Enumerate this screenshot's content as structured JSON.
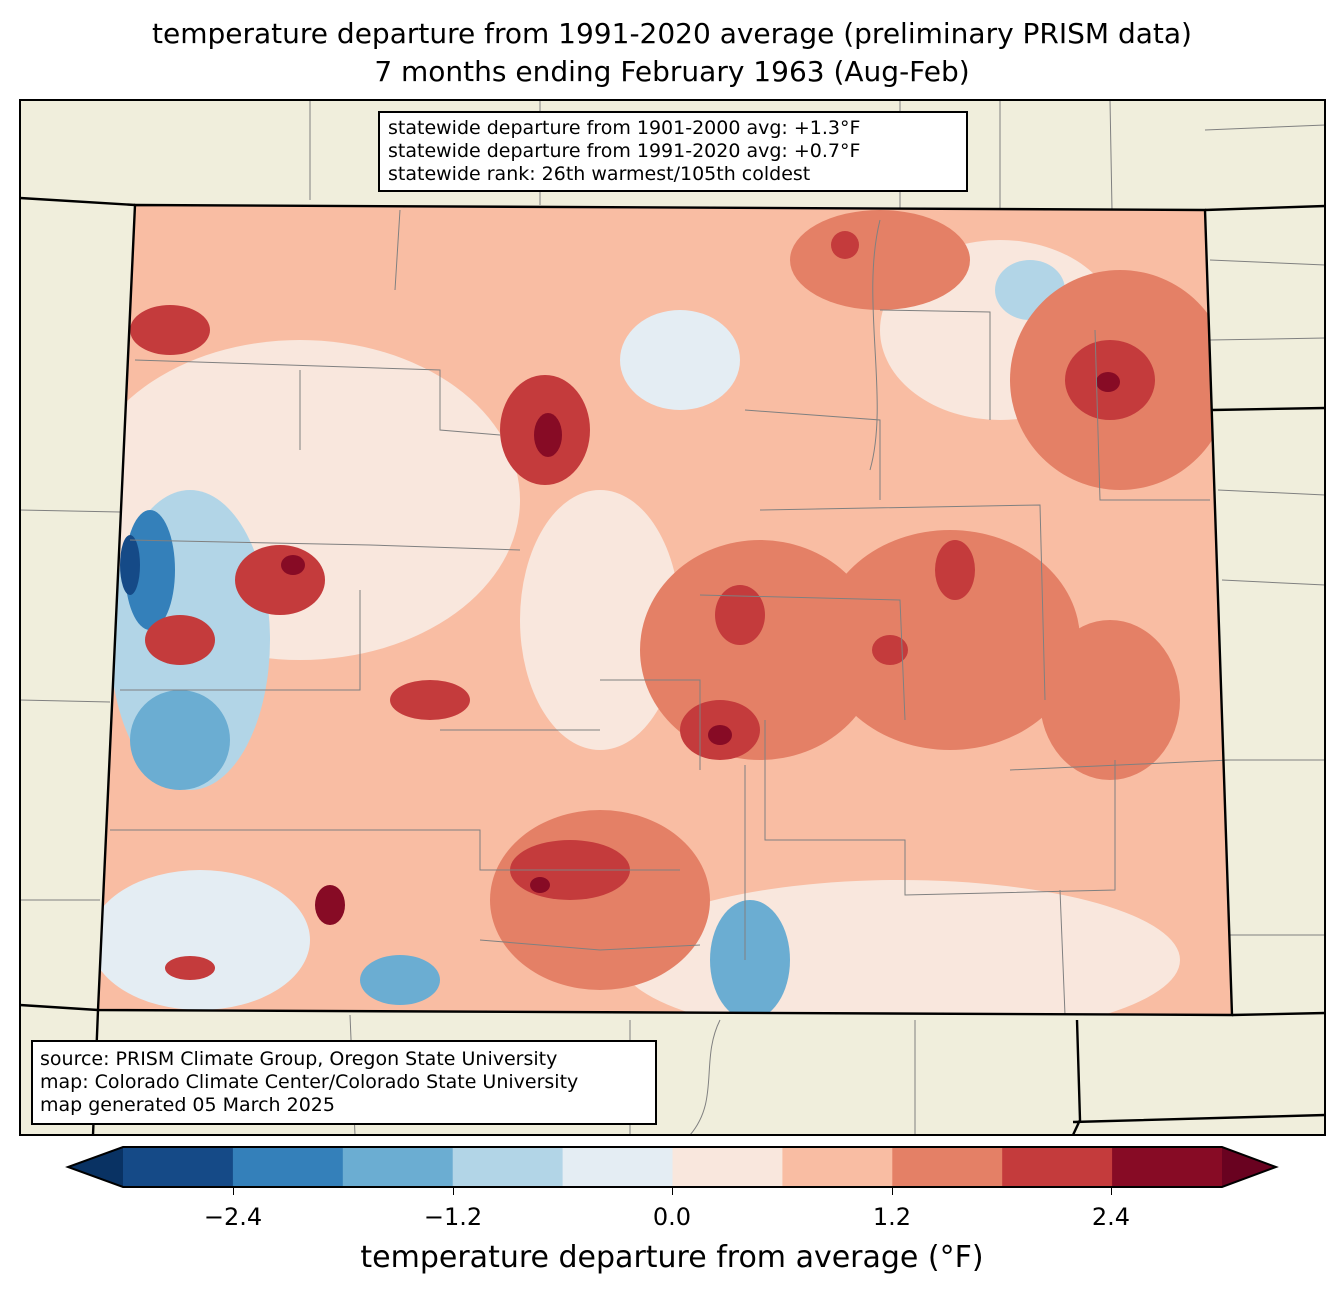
{
  "title": {
    "line1": "temperature departure from 1991-2020 average (preliminary PRISM data)",
    "line2": "7 months ending February 1963 (Aug-Feb)"
  },
  "stats": {
    "line1": "statewide departure from 1901-2000 avg: +1.3°F",
    "line2": "statewide departure from 1991-2020 avg: +0.7°F",
    "line3": "statewide rank: 26th warmest/105th coldest"
  },
  "source": {
    "line1": "source: PRISM Climate Group, Oregon State University",
    "line2": "map: Colorado Climate Center/Colorado State University",
    "line3": "map generated 05 March 2025"
  },
  "colorbar": {
    "label": "temperature departure from average (°F)",
    "ticks": [
      "−2.4",
      "−1.2",
      "0.0",
      "1.2",
      "2.4"
    ],
    "levels": [
      -3.0,
      -2.4,
      -1.8,
      -1.2,
      -0.6,
      0.0,
      0.6,
      1.2,
      1.8,
      2.4,
      3.0
    ],
    "colors": [
      "#154a87",
      "#3480ba",
      "#6badd2",
      "#b2d5e7",
      "#e4edf3",
      "#f9e7dd",
      "#f9bda3",
      "#e48066",
      "#c43b3c",
      "#870b25"
    ],
    "under": "#093263",
    "over": "#690220"
  },
  "colors": {
    "land": "#f0eedc",
    "border": "#000000",
    "county": "#808080"
  }
}
